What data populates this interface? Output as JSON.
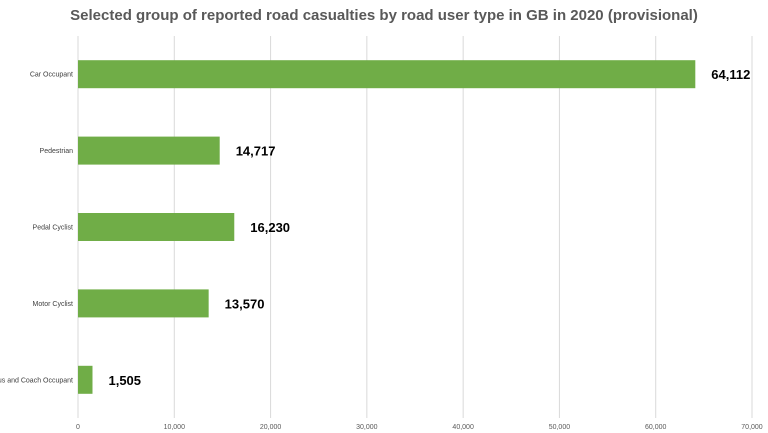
{
  "chart_data": {
    "type": "bar",
    "orientation": "horizontal",
    "title": "Selected group of reported road casualties by road user type in GB in 2020 (provisional)",
    "xlabel": "",
    "ylabel": "",
    "categories": [
      "Car Occupant",
      "Pedestrian",
      "Pedal Cyclist",
      "Motor Cyclist",
      "Bus and Coach Occupant"
    ],
    "values": [
      64112,
      14717,
      16230,
      13570,
      1505
    ],
    "data_labels": [
      "64,112",
      "14,717",
      "16,230",
      "13,570",
      "1,505"
    ],
    "xlim": [
      0,
      70000
    ],
    "ticks": [
      0,
      10000,
      20000,
      30000,
      40000,
      50000,
      60000,
      70000
    ],
    "tick_labels": [
      "0",
      "10,000",
      "20,000",
      "30,000",
      "40,000",
      "50,000",
      "60,000",
      "70,000"
    ],
    "grid": "vertical",
    "legend": "none",
    "bar_color": "#70ad47"
  }
}
